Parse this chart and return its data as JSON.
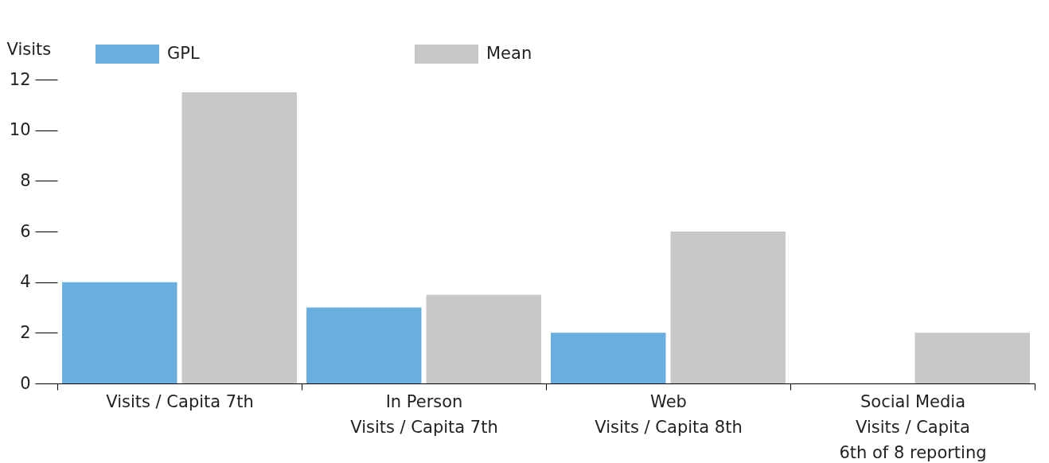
{
  "chart_data": {
    "type": "bar",
    "ylabel": "Visits",
    "categories": [
      "Visits / Capita 7th",
      "In Person\nVisits / Capita 7th",
      "Web\nVisits / Capita 8th",
      "Social Media\nVisits / Capita\n6th of 8 reporting"
    ],
    "series": [
      {
        "name": "GPL",
        "color": "#6aaee0",
        "values": [
          4,
          3,
          2,
          0
        ]
      },
      {
        "name": "Mean",
        "color": "#c8c8ca",
        "values": [
          11.5,
          3.5,
          6,
          2
        ]
      }
    ],
    "ylim": [
      0,
      12
    ],
    "yticks": [
      0,
      2,
      4,
      6,
      8,
      10,
      12
    ],
    "grid": false,
    "legend": "top left"
  }
}
